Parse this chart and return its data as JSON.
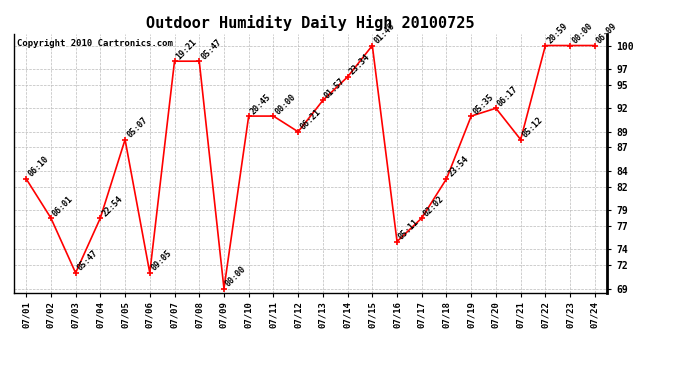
{
  "title": "Outdoor Humidity Daily High 20100725",
  "copyright": "Copyright 2010 Cartronics.com",
  "x_labels": [
    "07/01",
    "07/02",
    "07/03",
    "07/04",
    "07/05",
    "07/06",
    "07/07",
    "07/08",
    "07/09",
    "07/10",
    "07/11",
    "07/12",
    "07/13",
    "07/14",
    "07/15",
    "07/16",
    "07/17",
    "07/18",
    "07/19",
    "07/20",
    "07/21",
    "07/22",
    "07/23",
    "07/24"
  ],
  "y_values": [
    83,
    78,
    71,
    78,
    88,
    71,
    98,
    98,
    69,
    91,
    91,
    89,
    93,
    96,
    100,
    75,
    78,
    83,
    91,
    92,
    88,
    100,
    100,
    100
  ],
  "point_labels": [
    "06:10",
    "06:01",
    "05:47",
    "22:54",
    "05:07",
    "09:05",
    "19:21",
    "05:47",
    "00:00",
    "20:45",
    "00:00",
    "06:21",
    "01:57",
    "23:34",
    "01:46",
    "05:11",
    "02:02",
    "23:54",
    "05:35",
    "06:17",
    "05:12",
    "20:59",
    "00:00",
    "06:09"
  ],
  "line_color": "red",
  "marker_color": "red",
  "bg_color": "white",
  "grid_color": "#bbbbbb",
  "ylim_min": 69,
  "ylim_max": 100,
  "yticks": [
    69,
    72,
    74,
    77,
    79,
    82,
    84,
    87,
    89,
    92,
    95,
    97,
    100
  ],
  "title_fontsize": 11,
  "label_fontsize": 6,
  "copyright_fontsize": 6.5,
  "tick_fontsize": 7,
  "xtick_fontsize": 6.5
}
